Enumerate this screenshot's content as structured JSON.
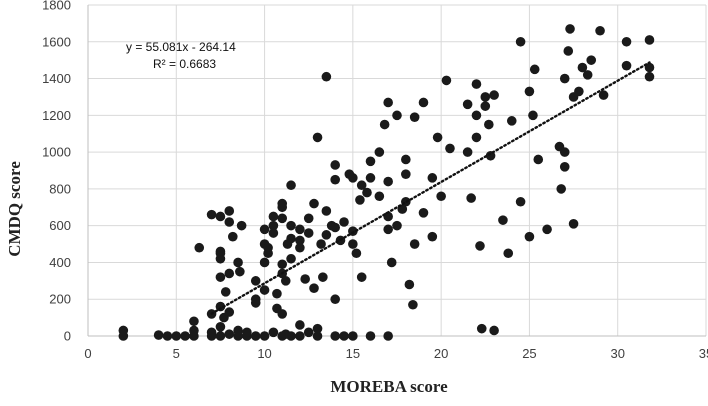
{
  "chart_data": {
    "type": "scatter",
    "title": "",
    "xlabel": "MOREBA score",
    "ylabel": "CMDQ score",
    "xlim": [
      0,
      35
    ],
    "ylim": [
      0,
      1800
    ],
    "xticks": [
      0,
      5,
      10,
      15,
      20,
      25,
      30,
      35
    ],
    "yticks": [
      0,
      200,
      400,
      600,
      800,
      1000,
      1200,
      1400,
      1600,
      1800
    ],
    "grid": true,
    "legend": "none",
    "marker_color": "#1a1a1a",
    "trendline": {
      "style": "dotted",
      "color": "#111111",
      "slope": 55.081,
      "intercept": -264.14,
      "x_range": [
        7,
        31.8
      ],
      "equation_label": "y = 55.081x - 264.14",
      "r2_label": "R² = 0.6683"
    },
    "series": [
      {
        "points": [
          [
            2,
            30
          ],
          [
            2,
            0
          ],
          [
            4,
            5
          ],
          [
            4.5,
            0
          ],
          [
            5,
            0
          ],
          [
            5.5,
            0
          ],
          [
            6,
            0
          ],
          [
            6,
            30
          ],
          [
            6,
            80
          ],
          [
            6.3,
            480
          ],
          [
            7,
            0
          ],
          [
            7,
            20
          ],
          [
            7,
            120
          ],
          [
            7,
            660
          ],
          [
            7.5,
            0
          ],
          [
            7.5,
            50
          ],
          [
            7.5,
            160
          ],
          [
            7.5,
            320
          ],
          [
            7.5,
            420
          ],
          [
            7.5,
            450
          ],
          [
            7.5,
            460
          ],
          [
            7.5,
            650
          ],
          [
            7.7,
            100
          ],
          [
            7.8,
            240
          ],
          [
            8,
            10
          ],
          [
            8,
            130
          ],
          [
            8,
            340
          ],
          [
            8,
            620
          ],
          [
            8,
            680
          ],
          [
            8.2,
            540
          ],
          [
            8.5,
            0
          ],
          [
            8.5,
            30
          ],
          [
            8.5,
            400
          ],
          [
            8.6,
            350
          ],
          [
            8.7,
            600
          ],
          [
            9,
            0
          ],
          [
            9,
            20
          ],
          [
            9.5,
            0
          ],
          [
            9.5,
            180
          ],
          [
            9.5,
            200
          ],
          [
            9.5,
            300
          ],
          [
            10,
            0
          ],
          [
            10,
            250
          ],
          [
            10,
            400
          ],
          [
            10,
            500
          ],
          [
            10,
            580
          ],
          [
            10.2,
            450
          ],
          [
            10.2,
            480
          ],
          [
            10.5,
            20
          ],
          [
            10.5,
            560
          ],
          [
            10.5,
            600
          ],
          [
            10.5,
            650
          ],
          [
            10.7,
            150
          ],
          [
            10.7,
            230
          ],
          [
            11,
            0
          ],
          [
            11,
            120
          ],
          [
            11,
            340
          ],
          [
            11,
            390
          ],
          [
            11,
            640
          ],
          [
            11,
            700
          ],
          [
            11,
            720
          ],
          [
            11.2,
            10
          ],
          [
            11.2,
            300
          ],
          [
            11.3,
            500
          ],
          [
            11.5,
            0
          ],
          [
            11.5,
            420
          ],
          [
            11.5,
            530
          ],
          [
            11.5,
            600
          ],
          [
            11.5,
            820
          ],
          [
            12,
            0
          ],
          [
            12,
            60
          ],
          [
            12,
            480
          ],
          [
            12,
            520
          ],
          [
            12,
            580
          ],
          [
            12.3,
            310
          ],
          [
            12.5,
            20
          ],
          [
            12.5,
            560
          ],
          [
            12.5,
            640
          ],
          [
            12.8,
            260
          ],
          [
            12.8,
            720
          ],
          [
            13,
            0
          ],
          [
            13,
            40
          ],
          [
            13,
            1080
          ],
          [
            13.2,
            500
          ],
          [
            13.3,
            320
          ],
          [
            13.5,
            1410
          ],
          [
            13.5,
            550
          ],
          [
            13.5,
            680
          ],
          [
            13.8,
            600
          ],
          [
            14,
            0
          ],
          [
            14,
            200
          ],
          [
            14,
            590
          ],
          [
            14,
            850
          ],
          [
            14,
            930
          ],
          [
            14.3,
            520
          ],
          [
            14.5,
            0
          ],
          [
            14.5,
            620
          ],
          [
            14.8,
            880
          ],
          [
            15,
            500
          ],
          [
            15,
            570
          ],
          [
            15,
            860
          ],
          [
            15,
            0
          ],
          [
            15.2,
            450
          ],
          [
            15.4,
            740
          ],
          [
            15.5,
            820
          ],
          [
            15.5,
            320
          ],
          [
            15.8,
            780
          ],
          [
            16,
            950
          ],
          [
            16,
            860
          ],
          [
            16,
            0
          ],
          [
            16.5,
            760
          ],
          [
            16.5,
            1000
          ],
          [
            16.8,
            1150
          ],
          [
            17,
            840
          ],
          [
            17,
            650
          ],
          [
            17,
            580
          ],
          [
            17,
            0
          ],
          [
            17,
            1270
          ],
          [
            17.2,
            400
          ],
          [
            17.5,
            1200
          ],
          [
            17.5,
            600
          ],
          [
            17.8,
            690
          ],
          [
            18,
            960
          ],
          [
            18,
            880
          ],
          [
            18,
            730
          ],
          [
            18.2,
            280
          ],
          [
            18.4,
            170
          ],
          [
            18.5,
            1190
          ],
          [
            18.5,
            500
          ],
          [
            19,
            670
          ],
          [
            19,
            1270
          ],
          [
            19.5,
            860
          ],
          [
            19.5,
            540
          ],
          [
            19.8,
            1080
          ],
          [
            20,
            760
          ],
          [
            20.3,
            1390
          ],
          [
            20.5,
            1020
          ],
          [
            21.5,
            1260
          ],
          [
            21.5,
            1000
          ],
          [
            21.7,
            750
          ],
          [
            22,
            1370
          ],
          [
            22,
            1200
          ],
          [
            22,
            1080
          ],
          [
            22.2,
            490
          ],
          [
            22.3,
            40
          ],
          [
            22.5,
            1250
          ],
          [
            22.5,
            1300
          ],
          [
            22.7,
            1150
          ],
          [
            22.8,
            980
          ],
          [
            23,
            30
          ],
          [
            23,
            1310
          ],
          [
            23.5,
            630
          ],
          [
            23.8,
            450
          ],
          [
            24,
            1170
          ],
          [
            24.5,
            1600
          ],
          [
            24.5,
            730
          ],
          [
            25,
            1330
          ],
          [
            25,
            540
          ],
          [
            25.2,
            1200
          ],
          [
            25.3,
            1450
          ],
          [
            25.5,
            960
          ],
          [
            26,
            580
          ],
          [
            26.7,
            1030
          ],
          [
            26.8,
            800
          ],
          [
            27,
            1400
          ],
          [
            27,
            1000
          ],
          [
            27,
            920
          ],
          [
            27.2,
            1550
          ],
          [
            27.3,
            1670
          ],
          [
            27.5,
            1300
          ],
          [
            27.5,
            610
          ],
          [
            27.8,
            1330
          ],
          [
            28,
            1460
          ],
          [
            28.3,
            1420
          ],
          [
            28.5,
            1500
          ],
          [
            29,
            1660
          ],
          [
            29.2,
            1310
          ],
          [
            30.5,
            1600
          ],
          [
            30.5,
            1470
          ],
          [
            31.8,
            1610
          ],
          [
            31.8,
            1460
          ],
          [
            31.8,
            1410
          ]
        ]
      }
    ]
  }
}
